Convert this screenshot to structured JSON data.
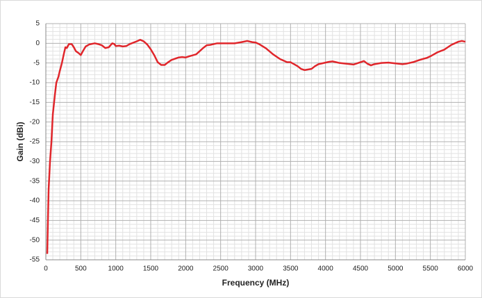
{
  "chart_data": {
    "type": "line",
    "x_label": "Frequency (MHz)",
    "y_label": "Gain (dBi)",
    "xlim": [
      0,
      6000
    ],
    "ylim": [
      -55,
      5
    ],
    "xticks": [
      0,
      500,
      1000,
      1500,
      2000,
      2500,
      3000,
      3500,
      4000,
      4500,
      5000,
      5500,
      6000
    ],
    "yticks": [
      -55,
      -50,
      -45,
      -40,
      -35,
      -30,
      -25,
      -20,
      -15,
      -10,
      -5,
      0,
      5
    ],
    "grid": true,
    "minor_grid": true,
    "x": [
      20,
      30,
      40,
      60,
      80,
      100,
      130,
      150,
      180,
      200,
      230,
      260,
      280,
      300,
      330,
      370,
      400,
      430,
      470,
      500,
      530,
      570,
      620,
      700,
      750,
      800,
      850,
      900,
      950,
      980,
      1000,
      1050,
      1100,
      1150,
      1200,
      1300,
      1350,
      1400,
      1450,
      1500,
      1550,
      1600,
      1650,
      1700,
      1750,
      1800,
      1900,
      1950,
      2000,
      2050,
      2150,
      2200,
      2250,
      2300,
      2350,
      2450,
      2500,
      2700,
      2800,
      2880,
      2950,
      3000,
      3050,
      3150,
      3250,
      3350,
      3450,
      3500,
      3600,
      3650,
      3700,
      3800,
      3850,
      3900,
      4000,
      4050,
      4100,
      4150,
      4200,
      4300,
      4400,
      4500,
      4550,
      4600,
      4650,
      4700,
      4800,
      4900,
      5000,
      5100,
      5150,
      5250,
      5350,
      5450,
      5500,
      5600,
      5700,
      5750,
      5800,
      5900,
      5950,
      6000
    ],
    "series": [
      {
        "name": "Gain",
        "color": "#e0262b",
        "values": [
          -53.5,
          -45,
          -37,
          -30,
          -25,
          -18,
          -13,
          -10,
          -8.5,
          -7,
          -5,
          -2.5,
          -1,
          -1.2,
          -0.2,
          -0.2,
          -1,
          -2,
          -2.5,
          -3,
          -2,
          -0.8,
          -0.3,
          0,
          -0.2,
          -0.5,
          -1.2,
          -1,
          0,
          -0.2,
          -0.7,
          -0.6,
          -0.8,
          -0.7,
          -0.2,
          0.5,
          0.9,
          0.5,
          -0.3,
          -1.5,
          -3,
          -4.8,
          -5.5,
          -5.5,
          -4.8,
          -4.2,
          -3.6,
          -3.5,
          -3.6,
          -3.3,
          -2.8,
          -2,
          -1.2,
          -0.5,
          -0.4,
          0,
          0,
          0,
          0.3,
          0.6,
          0.3,
          0.2,
          -0.2,
          -1.3,
          -2.8,
          -4,
          -4.8,
          -4.8,
          -5.8,
          -6.5,
          -6.8,
          -6.5,
          -5.8,
          -5.3,
          -4.9,
          -4.7,
          -4.6,
          -4.8,
          -5,
          -5.2,
          -5.4,
          -4.8,
          -4.5,
          -5.2,
          -5.6,
          -5.3,
          -5,
          -4.9,
          -5.1,
          -5.3,
          -5.2,
          -4.8,
          -4.2,
          -3.7,
          -3.3,
          -2.3,
          -1.6,
          -1,
          -0.4,
          0.4,
          0.6,
          0.4
        ]
      }
    ]
  }
}
